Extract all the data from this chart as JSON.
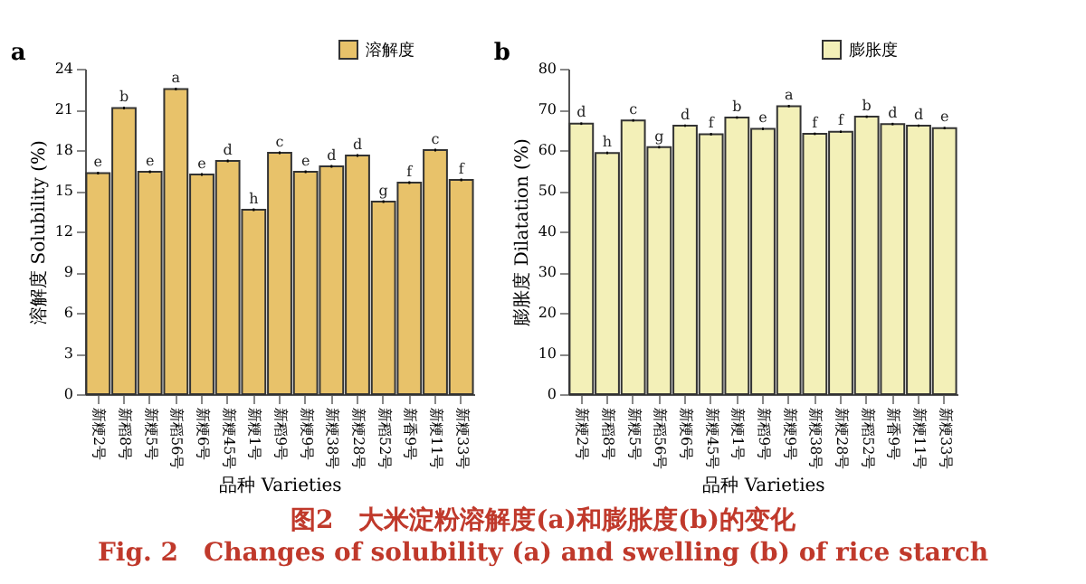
{
  "chart_data": [
    {
      "type": "bar",
      "title": "a",
      "xlabel": "品种 Varieties",
      "ylabel": "溶解度 Solubility (%)",
      "categories": [
        "新粳2号",
        "新稻8号",
        "新粳5号",
        "新稻56号",
        "新粳6号",
        "新粳45号",
        "新粳1号",
        "新稻9号",
        "新粳9号",
        "新粳38号",
        "新粳28号",
        "新稻52号",
        "新香9号",
        "新粳11号",
        "新粳33号"
      ],
      "series": [
        {
          "name": "溶解度",
          "color": "#e8c26a",
          "values": [
            16.3,
            21.1,
            16.4,
            22.5,
            16.2,
            17.2,
            13.6,
            17.8,
            16.4,
            16.8,
            17.6,
            14.2,
            15.6,
            18.0,
            15.8
          ],
          "errors": [
            0.1,
            0.1,
            0.1,
            0.1,
            0.1,
            0.1,
            0.1,
            0.1,
            0.1,
            0.1,
            0.1,
            0.1,
            0.1,
            0.1,
            0.1
          ]
        }
      ],
      "ylim": [
        0,
        24
      ],
      "yticks": [
        0,
        3,
        6,
        9,
        12,
        15,
        18,
        21,
        24
      ],
      "legend": "top right",
      "annotations": [
        {
          "text": "e",
          "x": "新粳2号",
          "y": 16.3
        },
        {
          "text": "b",
          "x": "新稻8号",
          "y": 21.1
        },
        {
          "text": "e",
          "x": "新粳5号",
          "y": 16.4
        },
        {
          "text": "a",
          "x": "新稻56号",
          "y": 22.5
        },
        {
          "text": "e",
          "x": "新粳6号",
          "y": 16.2
        },
        {
          "text": "d",
          "x": "新粳45号",
          "y": 17.2
        },
        {
          "text": "h",
          "x": "新粳1号",
          "y": 13.6
        },
        {
          "text": "c",
          "x": "新稻9号",
          "y": 17.8
        },
        {
          "text": "e",
          "x": "新粳9号",
          "y": 16.4
        },
        {
          "text": "d",
          "x": "新粳38号",
          "y": 16.8
        },
        {
          "text": "d",
          "x": "新粳28号",
          "y": 17.6
        },
        {
          "text": "g",
          "x": "新稻52号",
          "y": 14.2
        },
        {
          "text": "f",
          "x": "新香9号",
          "y": 15.6
        },
        {
          "text": "c",
          "x": "新粳11号",
          "y": 18.0
        },
        {
          "text": "f",
          "x": "新粳33号",
          "y": 15.8
        }
      ]
    },
    {
      "type": "bar",
      "title": "b",
      "xlabel": "品种 Varieties",
      "ylabel": "膨胀度 Dilatation (%)",
      "categories": [
        "新粳2号",
        "新稻8号",
        "新粳5号",
        "新稻56号",
        "新粳6号",
        "新粳45号",
        "新粳1号",
        "新稻9号",
        "新粳9号",
        "新粳38号",
        "新粳28号",
        "新稻52号",
        "新香9号",
        "新粳11号",
        "新粳33号"
      ],
      "series": [
        {
          "name": "膨胀度",
          "color": "#f3f0b8",
          "values": [
            66.5,
            59.3,
            67.3,
            60.7,
            66.0,
            63.9,
            68.0,
            65.2,
            70.8,
            64.0,
            64.5,
            68.2,
            66.4,
            66.0,
            65.4
          ],
          "errors": [
            0.3,
            0.3,
            0.3,
            0.3,
            0.3,
            0.3,
            0.3,
            0.3,
            0.3,
            0.3,
            0.3,
            0.3,
            0.3,
            0.3,
            0.3
          ]
        }
      ],
      "ylim": [
        0,
        80
      ],
      "yticks": [
        0,
        10,
        20,
        30,
        40,
        50,
        60,
        70,
        80
      ],
      "legend": "top right",
      "annotations": [
        {
          "text": "d",
          "x": "新粳2号",
          "y": 66.5
        },
        {
          "text": "h",
          "x": "新稻8号",
          "y": 59.3
        },
        {
          "text": "c",
          "x": "新粳5号",
          "y": 67.3
        },
        {
          "text": "g",
          "x": "新稻56号",
          "y": 60.7
        },
        {
          "text": "d",
          "x": "新粳6号",
          "y": 66.0
        },
        {
          "text": "f",
          "x": "新粳45号",
          "y": 63.9
        },
        {
          "text": "b",
          "x": "新粳1号",
          "y": 68.0
        },
        {
          "text": "e",
          "x": "新稻9号",
          "y": 65.2
        },
        {
          "text": "a",
          "x": "新粳9号",
          "y": 70.8
        },
        {
          "text": "f",
          "x": "新粳38号",
          "y": 64.0
        },
        {
          "text": "f",
          "x": "新粳28号",
          "y": 64.5
        },
        {
          "text": "b",
          "x": "新稻52号",
          "y": 68.2
        },
        {
          "text": "d",
          "x": "新香9号",
          "y": 66.4
        },
        {
          "text": "d",
          "x": "新粳11号",
          "y": 66.0
        },
        {
          "text": "e",
          "x": "新粳33号",
          "y": 65.4
        },
        "图2　大米淀粉溶解度(a)和膨胀度(b)的变化",
        "Fig. 2　Changes of solubility (a) and swelling (b) of rice starch"
      ]
    }
  ]
}
